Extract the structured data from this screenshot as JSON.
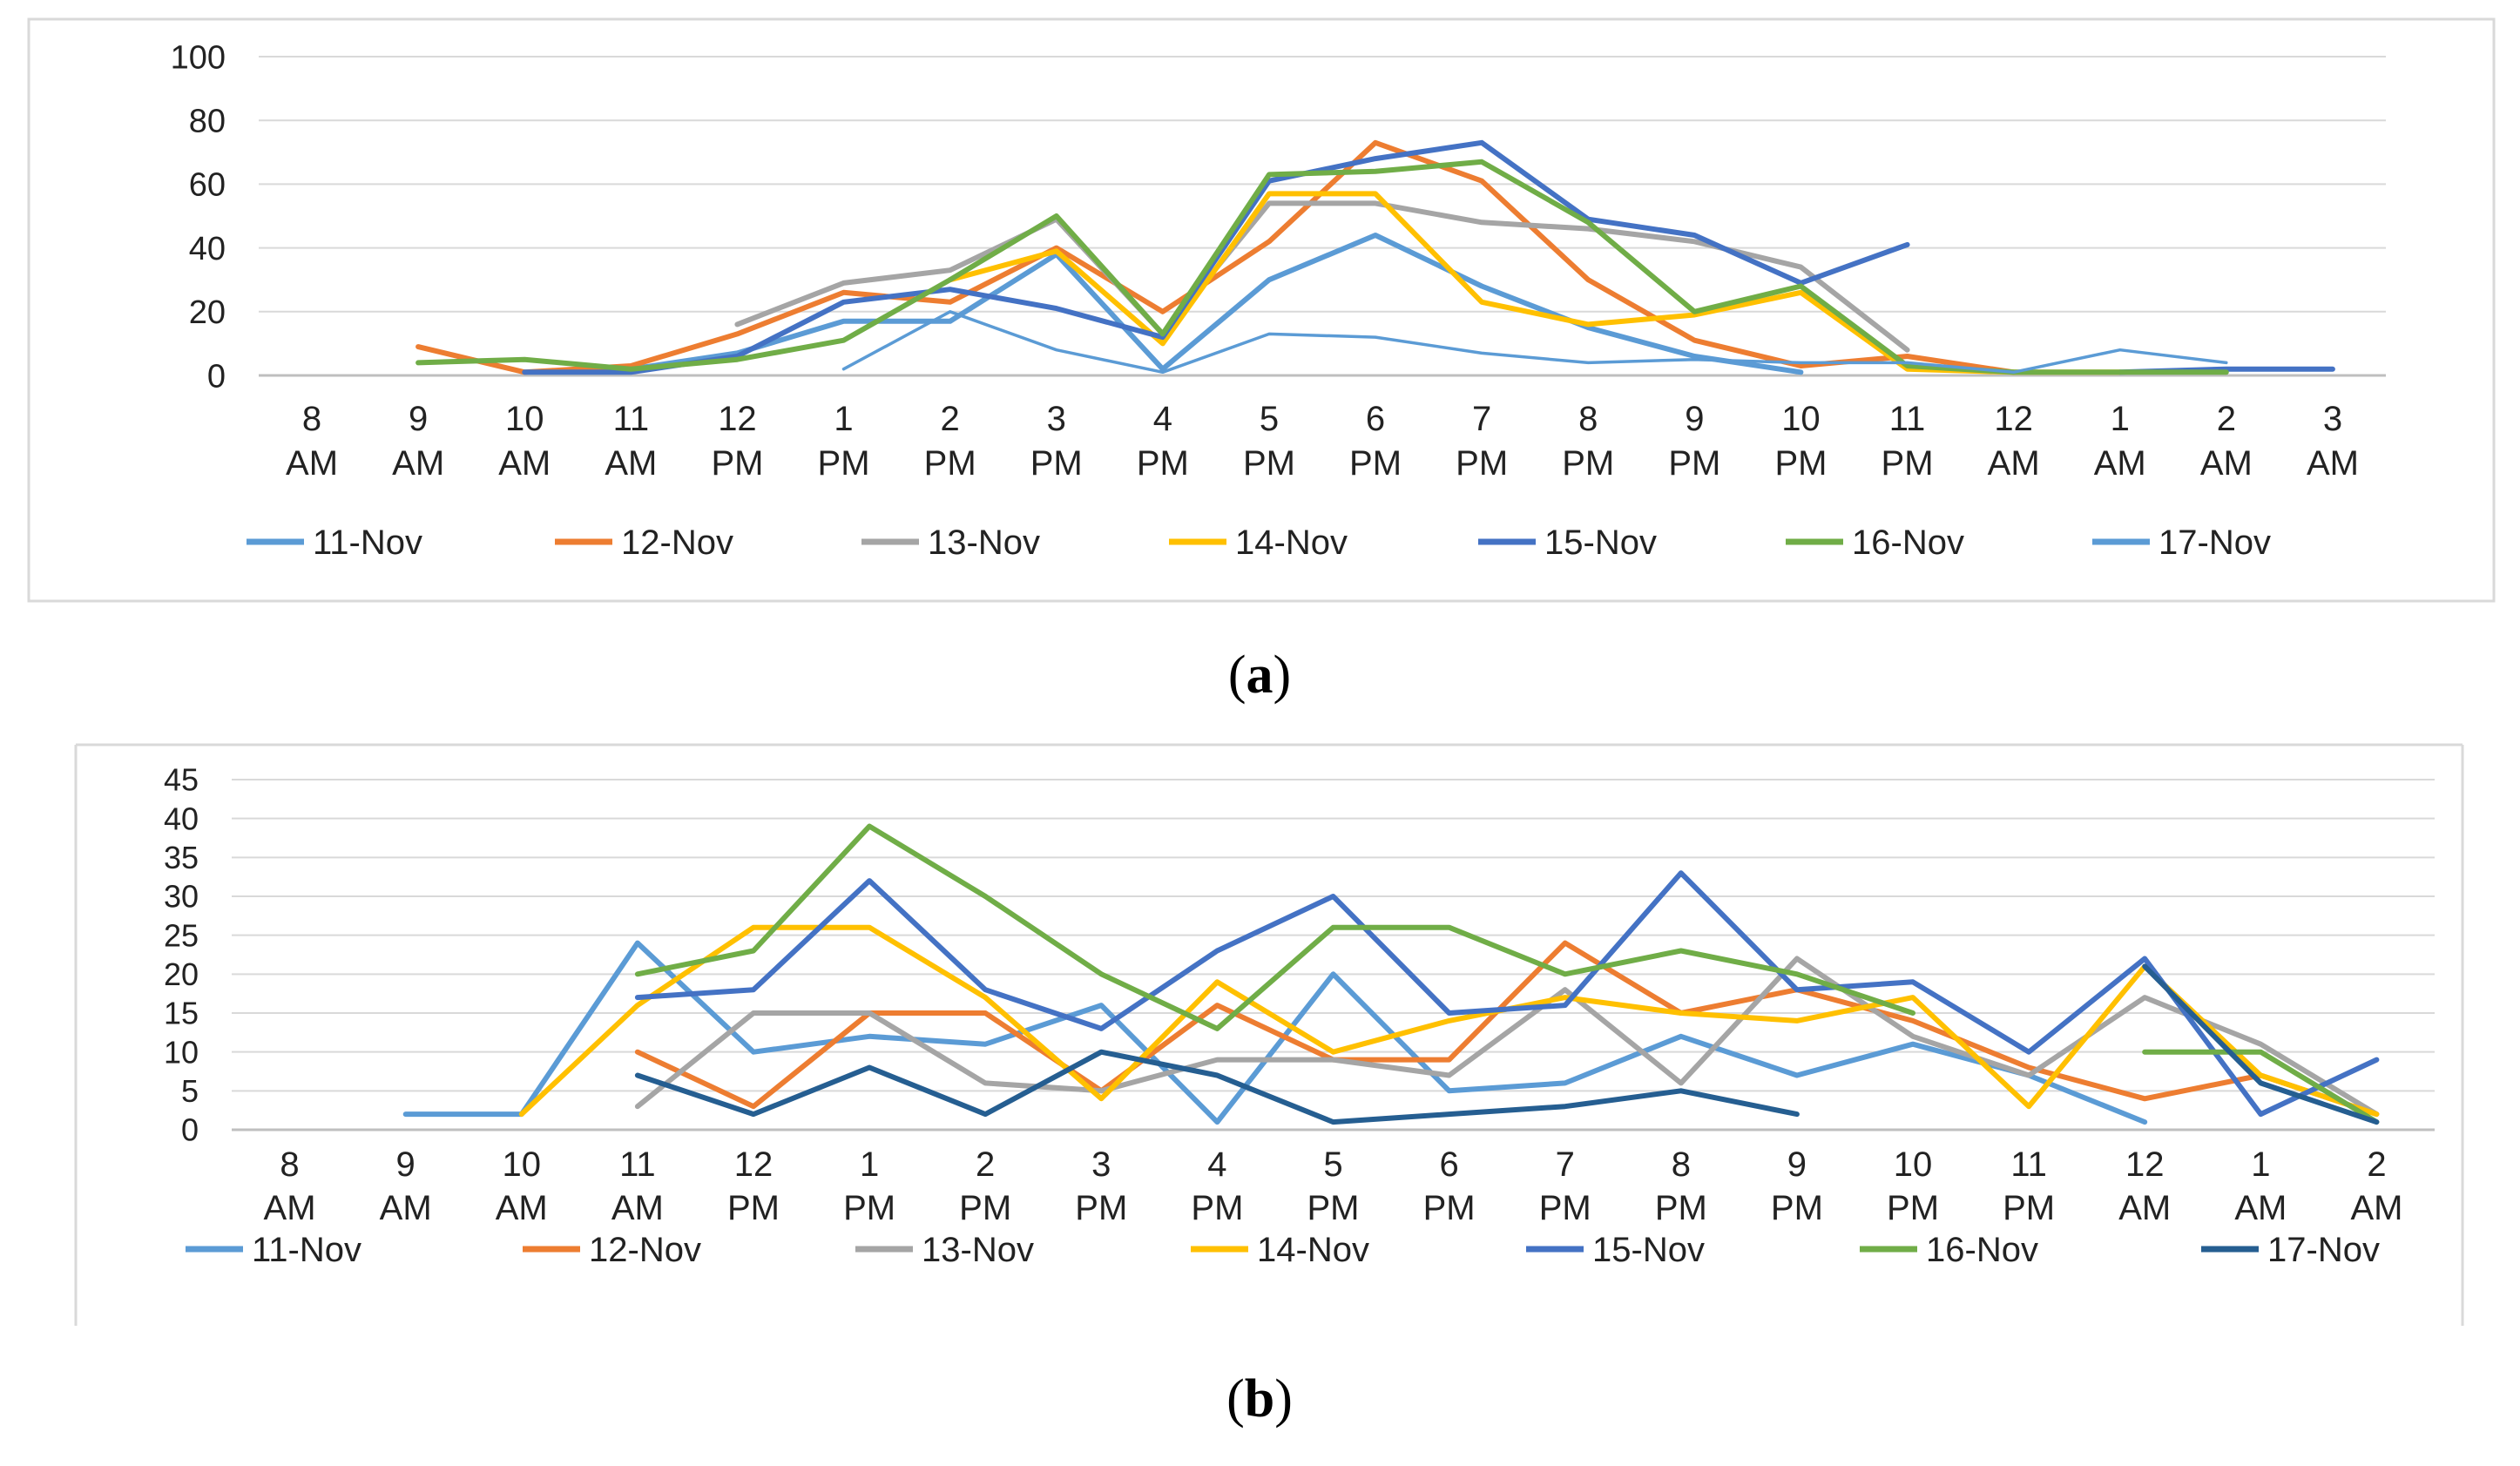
{
  "figure": {
    "panels": [
      {
        "caption_letter": "a",
        "caption_open": "(",
        "caption_close": ")"
      },
      {
        "caption_letter": "b",
        "caption_open": "(",
        "caption_close": ")"
      }
    ]
  },
  "chart_data": [
    {
      "type": "line",
      "title": "",
      "xlabel": "",
      "ylabel": "",
      "categories": [
        "8 AM",
        "9 AM",
        "10 AM",
        "11 AM",
        "12 PM",
        "1 PM",
        "2 PM",
        "3 PM",
        "4 PM",
        "5 PM",
        "6 PM",
        "7 PM",
        "8 PM",
        "9 PM",
        "10 PM",
        "11 PM",
        "12 AM",
        "1 AM",
        "2 AM",
        "3 AM"
      ],
      "ylim": [
        0,
        100
      ],
      "yticks": [
        0,
        20,
        40,
        60,
        80,
        100
      ],
      "grid": true,
      "legend_position": "bottom",
      "series": [
        {
          "name": "11-Nov",
          "color": "#5B9BD5",
          "values": [
            null,
            null,
            null,
            2,
            7,
            17,
            17,
            38,
            2,
            30,
            44,
            28,
            15,
            6,
            1,
            null,
            null,
            null,
            null,
            null
          ]
        },
        {
          "name": "12-Nov",
          "color": "#ED7D31",
          "values": [
            null,
            9,
            1,
            3,
            13,
            26,
            23,
            40,
            20,
            42,
            73,
            61,
            30,
            11,
            3,
            6,
            1,
            null,
            null,
            null
          ]
        },
        {
          "name": "13-Nov",
          "color": "#A5A5A5",
          "values": [
            null,
            null,
            null,
            null,
            16,
            29,
            33,
            49,
            13,
            54,
            54,
            48,
            46,
            42,
            34,
            8,
            null,
            null,
            null,
            null
          ]
        },
        {
          "name": "14-Nov",
          "color": "#FFC000",
          "values": [
            null,
            null,
            null,
            null,
            null,
            null,
            30,
            39,
            10,
            57,
            57,
            23,
            16,
            19,
            26,
            2,
            1,
            1,
            null,
            null
          ]
        },
        {
          "name": "15-Nov",
          "color": "#4472C4",
          "values": [
            null,
            null,
            1,
            1,
            6,
            23,
            27,
            21,
            12,
            61,
            68,
            73,
            49,
            44,
            29,
            41,
            null,
            1,
            2,
            2
          ]
        },
        {
          "name": "16-Nov",
          "color": "#70AD47",
          "values": [
            null,
            4,
            5,
            2,
            5,
            11,
            30,
            50,
            13,
            63,
            64,
            67,
            48,
            20,
            28,
            3,
            1,
            1,
            1,
            null
          ]
        },
        {
          "name": "17-Nov",
          "color": "#5B9BD5",
          "values": [
            null,
            null,
            null,
            null,
            null,
            2,
            20,
            8,
            1,
            13,
            12,
            7,
            4,
            5,
            4,
            4,
            1,
            8,
            4,
            null
          ]
        }
      ]
    },
    {
      "type": "line",
      "title": "",
      "xlabel": "",
      "ylabel": "",
      "categories": [
        "8 AM",
        "9 AM",
        "10 AM",
        "11 AM",
        "12 PM",
        "1 PM",
        "2 PM",
        "3 PM",
        "4 PM",
        "5 PM",
        "6 PM",
        "7 PM",
        "8 PM",
        "9 PM",
        "10 PM",
        "11 PM",
        "12 AM",
        "1 AM",
        "2 AM"
      ],
      "ylim": [
        0,
        45
      ],
      "yticks": [
        0,
        5,
        10,
        15,
        20,
        25,
        30,
        35,
        40,
        45
      ],
      "grid": true,
      "legend_position": "bottom",
      "series": [
        {
          "name": "11-Nov",
          "color": "#5B9BD5",
          "values": [
            null,
            2,
            2,
            24,
            10,
            12,
            11,
            16,
            1,
            20,
            5,
            6,
            12,
            7,
            11,
            7,
            1,
            null,
            null
          ]
        },
        {
          "name": "12-Nov",
          "color": "#ED7D31",
          "values": [
            null,
            null,
            null,
            10,
            3,
            15,
            15,
            5,
            16,
            9,
            9,
            24,
            15,
            18,
            14,
            8,
            4,
            7,
            2
          ]
        },
        {
          "name": "13-Nov",
          "color": "#A5A5A5",
          "values": [
            null,
            null,
            null,
            3,
            15,
            15,
            6,
            5,
            9,
            9,
            7,
            18,
            6,
            22,
            12,
            7,
            17,
            11,
            2
          ]
        },
        {
          "name": "14-Nov",
          "color": "#FFC000",
          "values": [
            null,
            null,
            2,
            16,
            26,
            26,
            17,
            4,
            19,
            10,
            14,
            17,
            15,
            14,
            17,
            3,
            21,
            7,
            2
          ]
        },
        {
          "name": "15-Nov",
          "color": "#4472C4",
          "values": [
            null,
            null,
            null,
            17,
            18,
            32,
            18,
            13,
            23,
            30,
            15,
            16,
            33,
            18,
            19,
            10,
            22,
            2,
            9
          ]
        },
        {
          "name": "16-Nov",
          "color": "#70AD47",
          "values": [
            null,
            null,
            null,
            20,
            23,
            39,
            30,
            20,
            13,
            26,
            26,
            20,
            23,
            20,
            15,
            null,
            10,
            10,
            1
          ]
        },
        {
          "name": "17-Nov",
          "color": "#255E91",
          "values": [
            null,
            null,
            null,
            7,
            2,
            8,
            2,
            10,
            7,
            1,
            2,
            3,
            5,
            2,
            null,
            null,
            21,
            6,
            1
          ]
        }
      ]
    }
  ]
}
